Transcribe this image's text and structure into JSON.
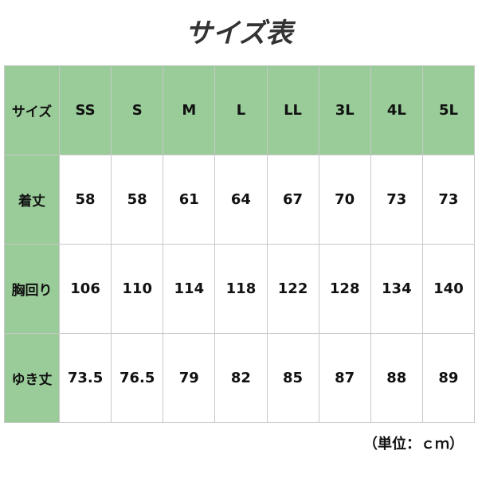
{
  "title": "サイズ表",
  "header_color": "#99cc99",
  "table": {
    "header": [
      "サイズ",
      "SS",
      "S",
      "M",
      "L",
      "LL",
      "3L",
      "4L",
      "5L"
    ],
    "rows": [
      {
        "label": "着丈",
        "values": [
          "58",
          "58",
          "61",
          "64",
          "67",
          "70",
          "73",
          "73"
        ]
      },
      {
        "label": "胸回り",
        "values": [
          "106",
          "110",
          "114",
          "118",
          "122",
          "128",
          "134",
          "140"
        ]
      },
      {
        "label": "ゆき丈",
        "values": [
          "73.5",
          "76.5",
          "79",
          "82",
          "85",
          "87",
          "88",
          "89"
        ]
      }
    ]
  },
  "unit": "（単位：ｃｍ）"
}
